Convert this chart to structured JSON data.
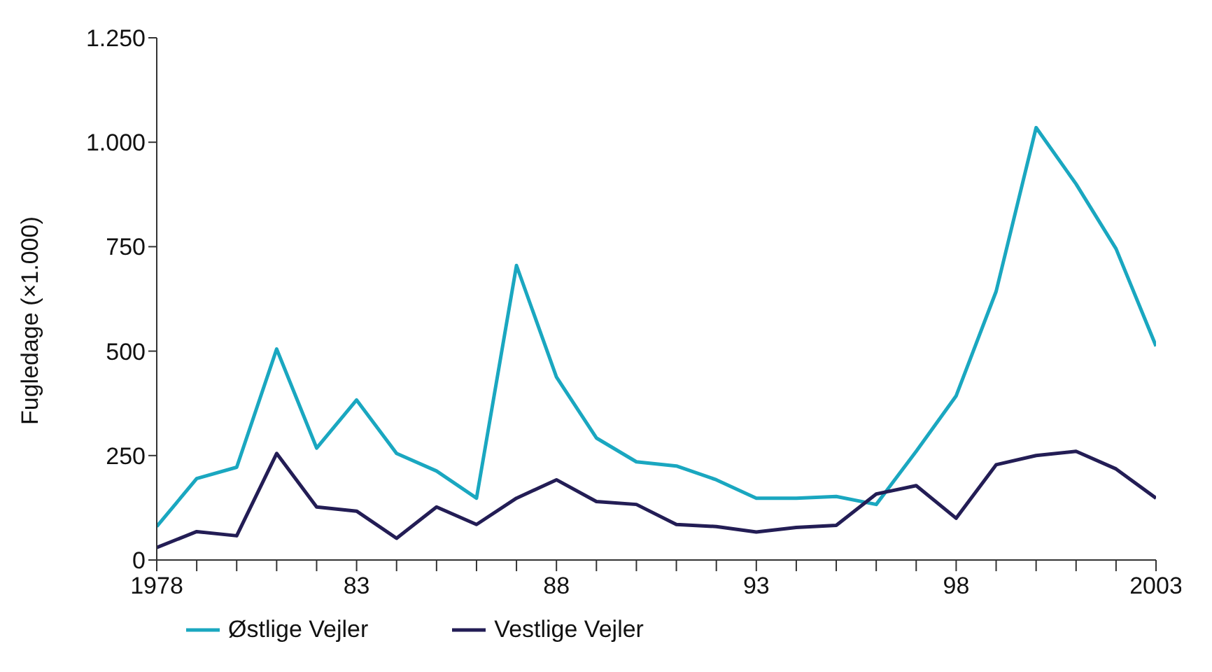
{
  "chart_data": {
    "type": "line",
    "ylabel": "Fugledage (×1.000)",
    "x": [
      1978,
      1979,
      1980,
      1981,
      1982,
      1983,
      1984,
      1985,
      1986,
      1987,
      1988,
      1989,
      1990,
      1991,
      1992,
      1993,
      1994,
      1995,
      1996,
      1997,
      1998,
      1999,
      2000,
      2001,
      2002,
      2003
    ],
    "series": [
      {
        "name": "Østlige Vejler",
        "color": "#1aa7c0",
        "values": [
          80,
          195,
          222,
          505,
          268,
          383,
          255,
          213,
          148,
          705,
          438,
          292,
          235,
          225,
          192,
          148,
          148,
          152,
          133,
          260,
          393,
          643,
          1035,
          900,
          745,
          512
        ]
      },
      {
        "name": "Vestlige Vejler",
        "color": "#231d55",
        "values": [
          30,
          68,
          58,
          255,
          127,
          117,
          52,
          127,
          85,
          148,
          192,
          140,
          133,
          85,
          80,
          67,
          78,
          83,
          158,
          178,
          100,
          228,
          250,
          260,
          218,
          148
        ]
      }
    ],
    "xlim": [
      1978,
      2003
    ],
    "xticks": [
      1978,
      {
        "value": 1979,
        "label": null
      },
      {
        "value": 1980,
        "label": null
      },
      {
        "value": 1981,
        "label": null
      },
      {
        "value": 1982,
        "label": null
      },
      {
        "value": 1983,
        "label": "83"
      },
      {
        "value": 1984,
        "label": null
      },
      {
        "value": 1985,
        "label": null
      },
      {
        "value": 1986,
        "label": null
      },
      {
        "value": 1987,
        "label": null
      },
      {
        "value": 1988,
        "label": "88"
      },
      {
        "value": 1989,
        "label": null
      },
      {
        "value": 1990,
        "label": null
      },
      {
        "value": 1991,
        "label": null
      },
      {
        "value": 1992,
        "label": null
      },
      {
        "value": 1993,
        "label": "93"
      },
      {
        "value": 1994,
        "label": null
      },
      {
        "value": 1995,
        "label": null
      },
      {
        "value": 1996,
        "label": null
      },
      {
        "value": 1997,
        "label": null
      },
      {
        "value": 1998,
        "label": "98"
      },
      {
        "value": 1999,
        "label": null
      },
      {
        "value": 2000,
        "label": null
      },
      {
        "value": 2001,
        "label": null
      },
      {
        "value": 2002,
        "label": null
      },
      2003
    ],
    "ylim": [
      0,
      1250
    ],
    "yticks": [
      0,
      250,
      500,
      750,
      {
        "value": 1000,
        "label": "1.000"
      },
      {
        "value": 1250,
        "label": "1.250"
      }
    ],
    "grid": false,
    "legend": "bottom left",
    "marker": "none",
    "line_style": "solid"
  }
}
